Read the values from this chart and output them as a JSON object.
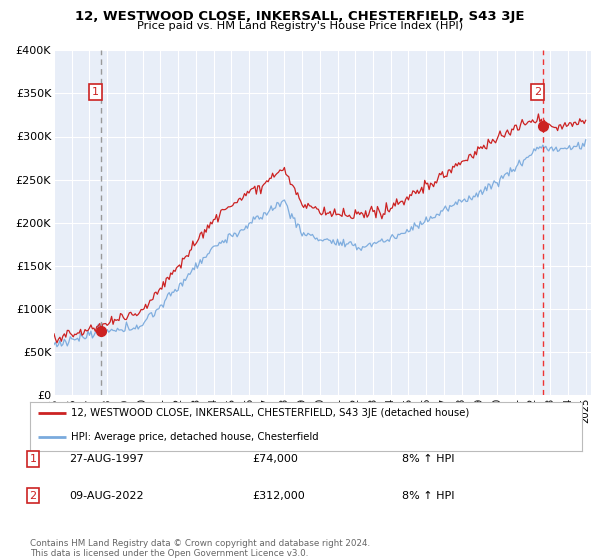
{
  "title": "12, WESTWOOD CLOSE, INKERSALL, CHESTERFIELD, S43 3JE",
  "subtitle": "Price paid vs. HM Land Registry's House Price Index (HPI)",
  "background_color": "#ffffff",
  "plot_bg_color": "#e8eef8",
  "grid_color": "#ffffff",
  "ylim": [
    0,
    400000
  ],
  "yticks": [
    0,
    50000,
    100000,
    150000,
    200000,
    250000,
    300000,
    350000,
    400000
  ],
  "ytick_labels": [
    "£0",
    "£50K",
    "£100K",
    "£150K",
    "£200K",
    "£250K",
    "£300K",
    "£350K",
    "£400K"
  ],
  "sale1_year": 1997.65,
  "sale1_price": 74000,
  "sale2_year": 2022.6,
  "sale2_price": 312000,
  "sale1_label": "1",
  "sale2_label": "2",
  "legend_line1": "12, WESTWOOD CLOSE, INKERSALL, CHESTERFIELD, S43 3JE (detached house)",
  "legend_line2": "HPI: Average price, detached house, Chesterfield",
  "table_row1_num": "1",
  "table_row1_date": "27-AUG-1997",
  "table_row1_price": "£74,000",
  "table_row1_hpi": "8% ↑ HPI",
  "table_row2_num": "2",
  "table_row2_date": "09-AUG-2022",
  "table_row2_price": "£312,000",
  "table_row2_hpi": "8% ↑ HPI",
  "footer": "Contains HM Land Registry data © Crown copyright and database right 2024.\nThis data is licensed under the Open Government Licence v3.0.",
  "red_color": "#cc2222",
  "blue_color": "#7aaadd",
  "sale1_vline_color": "#999999",
  "sale2_vline_color": "#ee3333",
  "marker_color": "#cc2222"
}
